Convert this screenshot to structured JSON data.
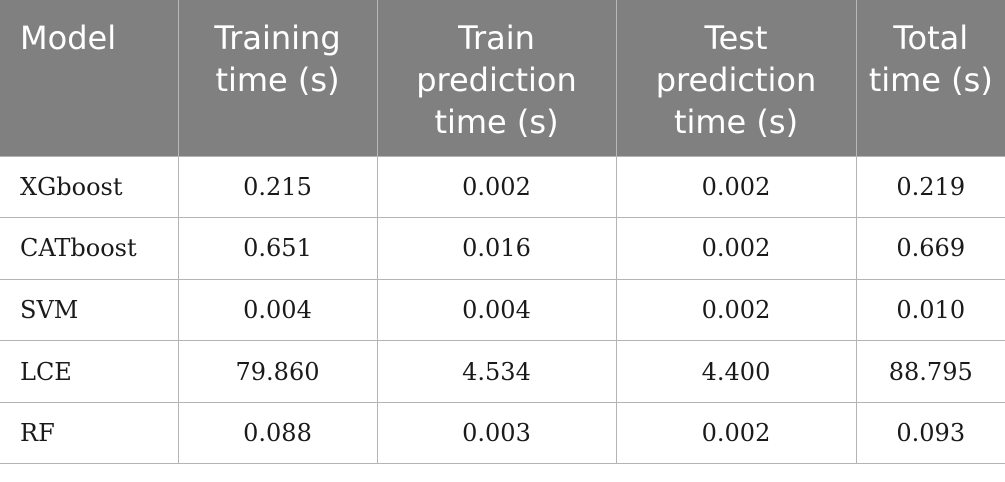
{
  "table": {
    "headers": [
      "Model",
      "Training time (s)",
      "Train prediction time (s)",
      "Test prediction time (s)",
      "Total time (s)"
    ],
    "rows": [
      [
        "XGboost",
        "0.215",
        "0.002",
        "0.002",
        "0.219"
      ],
      [
        "CATboost",
        "0.651",
        "0.016",
        "0.002",
        "0.669"
      ],
      [
        "SVM",
        "0.004",
        "0.004",
        "0.002",
        "0.010"
      ],
      [
        "LCE",
        "79.860",
        "4.534",
        "4.400",
        "88.795"
      ],
      [
        "RF",
        "0.088",
        "0.003",
        "0.002",
        "0.093"
      ]
    ]
  },
  "colors": {
    "header_bg": "#808080",
    "header_text": "#ffffff",
    "rule": "#b4b4b4"
  }
}
